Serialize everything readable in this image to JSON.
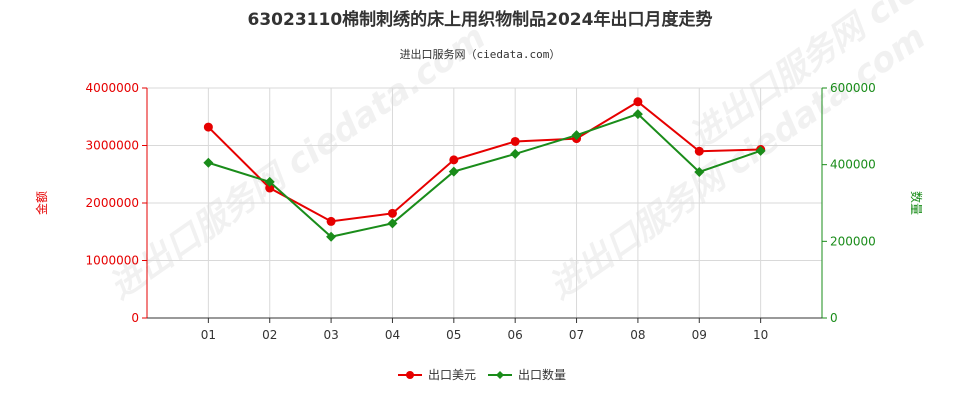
{
  "chart_data": {
    "type": "line",
    "title": "63023110棉制刺绣的床上用织物制品2024年出口月度走势",
    "subtitle": "进出口服务网（ciedata.com）",
    "categories": [
      "01",
      "02",
      "03",
      "04",
      "05",
      "06",
      "07",
      "08",
      "09",
      "10"
    ],
    "ylabel_left": "金额",
    "ylabel_right": "数量",
    "ylim_left": [
      0,
      4000000
    ],
    "ylim_right": [
      0,
      600000
    ],
    "yticks_left": [
      "0",
      "1000000",
      "2000000",
      "3000000",
      "4000000"
    ],
    "yticks_right": [
      "0",
      "200000",
      "400000",
      "600000"
    ],
    "grid": true,
    "legend_position": "bottom-center",
    "series": [
      {
        "name": "出口美元",
        "axis": "left",
        "color": "#e60000",
        "marker": "circle",
        "values": [
          3320000,
          2260000,
          1680000,
          1820000,
          2750000,
          3070000,
          3120000,
          3760000,
          2900000,
          2930000
        ]
      },
      {
        "name": "出口数量",
        "axis": "right",
        "color": "#1a8c1a",
        "marker": "diamond",
        "values": [
          405000,
          355000,
          212000,
          247000,
          382000,
          428000,
          477000,
          532000,
          381000,
          436000
        ]
      }
    ]
  },
  "watermark": "进出口服务网 ciedata.com"
}
